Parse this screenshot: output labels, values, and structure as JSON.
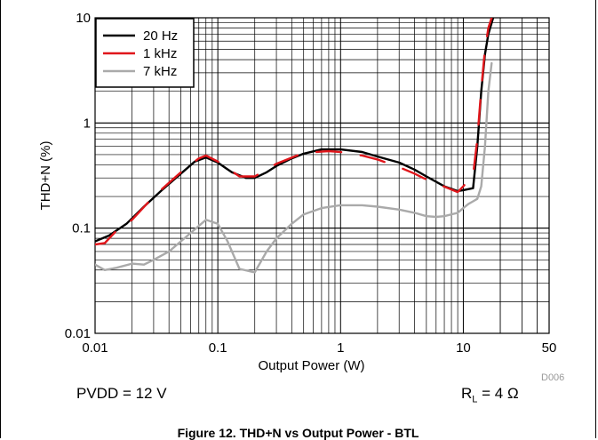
{
  "chart_data": {
    "type": "line",
    "xlabel": "Output Power (W)",
    "ylabel": "THD+N (%)",
    "x_scale": "log",
    "y_scale": "log",
    "xlim": [
      0.01,
      50
    ],
    "ylim": [
      0.01,
      10
    ],
    "x_ticks": [
      0.01,
      0.1,
      1,
      10,
      50
    ],
    "x_tick_labels": [
      "0.01",
      "0.1",
      "1",
      "10",
      "50"
    ],
    "y_ticks": [
      0.01,
      0.1,
      1,
      10
    ],
    "y_tick_labels": [
      "0.01",
      "0.1",
      "1",
      "10"
    ],
    "grid": true,
    "legend_position": "top-left",
    "colors": {
      "20 Hz": "#000000",
      "1 kHz": "#e0161b",
      "7 kHz": "#aaaaaa"
    },
    "series": [
      {
        "name": "20 Hz",
        "x": [
          0.01,
          0.013,
          0.018,
          0.025,
          0.035,
          0.05,
          0.065,
          0.08,
          0.1,
          0.13,
          0.17,
          0.2,
          0.25,
          0.3,
          0.4,
          0.5,
          0.7,
          1,
          1.5,
          2,
          3,
          4,
          5,
          7,
          9,
          10,
          12,
          13,
          14,
          15,
          16,
          17.5
        ],
        "y": [
          0.075,
          0.085,
          0.11,
          0.16,
          0.23,
          0.33,
          0.43,
          0.47,
          0.42,
          0.34,
          0.3,
          0.3,
          0.34,
          0.39,
          0.46,
          0.51,
          0.56,
          0.56,
          0.53,
          0.48,
          0.42,
          0.36,
          0.31,
          0.25,
          0.225,
          0.23,
          0.24,
          0.6,
          2,
          4.5,
          7,
          10
        ]
      },
      {
        "name": "1 kHz",
        "x": [
          0.01,
          0.012,
          0.015,
          0.02,
          0.03,
          0.05,
          0.07,
          0.08,
          0.1,
          0.15,
          0.2,
          0.3,
          0.5,
          0.8,
          1,
          1.5,
          2,
          3,
          4,
          4.7,
          9,
          10,
          12,
          13,
          14,
          15,
          16,
          17
        ],
        "y": [
          0.07,
          0.072,
          0.095,
          0.12,
          0.2,
          0.34,
          0.46,
          0.49,
          0.43,
          0.31,
          0.31,
          0.41,
          0.52,
          0.54,
          0.53,
          0.49,
          0.45,
          0.38,
          0.33,
          0.3,
          0.22,
          0.25,
          0.32,
          0.7,
          2.1,
          5,
          8,
          10
        ]
      },
      {
        "name": "7 kHz",
        "x": [
          0.01,
          0.012,
          0.015,
          0.02,
          0.025,
          0.03,
          0.04,
          0.05,
          0.06,
          0.07,
          0.08,
          0.1,
          0.12,
          0.15,
          0.2,
          0.25,
          0.3,
          0.4,
          0.5,
          0.7,
          1,
          1.5,
          2,
          3,
          4,
          5,
          6,
          7,
          9,
          10,
          11,
          12,
          13,
          14,
          15,
          16,
          17
        ],
        "y": [
          0.045,
          0.04,
          0.042,
          0.046,
          0.045,
          0.05,
          0.06,
          0.075,
          0.09,
          0.105,
          0.12,
          0.11,
          0.075,
          0.041,
          0.038,
          0.06,
          0.08,
          0.11,
          0.135,
          0.155,
          0.165,
          0.165,
          0.16,
          0.15,
          0.14,
          0.13,
          0.128,
          0.13,
          0.14,
          0.155,
          0.17,
          0.18,
          0.19,
          0.25,
          0.6,
          2,
          3.7
        ]
      }
    ]
  },
  "notes": {
    "pvdd": "PVDD = 12 V",
    "rl_prefix": "R",
    "rl_sub": "L",
    "rl_suffix": " = 4 Ω",
    "code": "D006"
  },
  "caption": "Figure 12. THD+N vs Output Power - BTL"
}
